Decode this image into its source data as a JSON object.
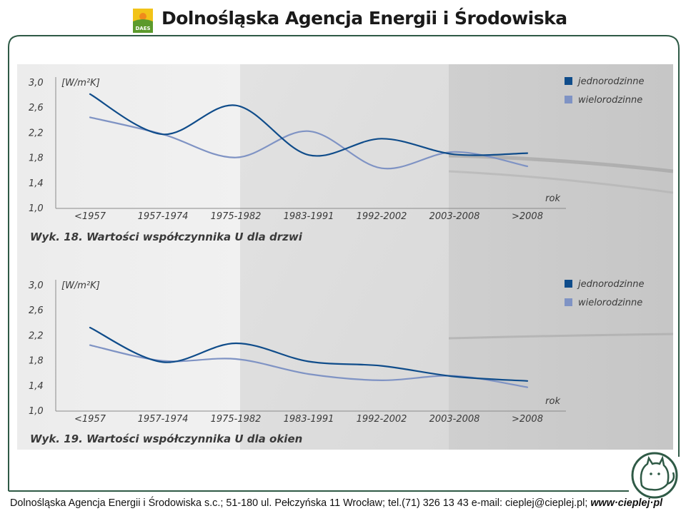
{
  "header": {
    "logo_text": "DAES",
    "title": "Dolnośląska Agencja Energii i Środowiska"
  },
  "colors": {
    "jednorodzinne": "#0f4c8a",
    "wielorodzinne": "#7f93c4",
    "frame": "#2f5a46"
  },
  "chart_data": [
    {
      "type": "line",
      "caption": "Wyk. 18. Wartości współczynnika U dla drzwi",
      "unit": "[W/m²K]",
      "xlabel": "rok",
      "ylim": [
        1.0,
        3.0
      ],
      "yticks": [
        "3,0",
        "2,6",
        "2,2",
        "1,8",
        "1,4",
        "1,0"
      ],
      "categories": [
        "<1957",
        "1957-1974",
        "1975-1982",
        "1983-1991",
        "1992-2002",
        "2003-2008",
        ">2008"
      ],
      "legend_position": "top-right",
      "series": [
        {
          "name": "jednorodzinne",
          "values": [
            2.82,
            2.18,
            2.64,
            1.85,
            2.11,
            1.86,
            1.88
          ]
        },
        {
          "name": "wielorodzinne",
          "values": [
            2.45,
            2.18,
            1.81,
            2.23,
            1.64,
            1.9,
            1.67
          ]
        }
      ]
    },
    {
      "type": "line",
      "caption": "Wyk. 19. Wartości współczynnika U dla okien",
      "unit": "[W/m²K]",
      "xlabel": "rok",
      "ylim": [
        1.0,
        3.0
      ],
      "yticks": [
        "3,0",
        "2,6",
        "2,2",
        "1,8",
        "1,4",
        "1,0"
      ],
      "categories": [
        "<1957",
        "1957-1974",
        "1975-1982",
        "1983-1991",
        "1992-2002",
        "2003-2008",
        ">2008"
      ],
      "legend_position": "top-right",
      "series": [
        {
          "name": "jednorodzinne",
          "values": [
            2.33,
            1.78,
            2.08,
            1.79,
            1.72,
            1.55,
            1.48
          ]
        },
        {
          "name": "wielorodzinne",
          "values": [
            2.05,
            1.8,
            1.83,
            1.59,
            1.49,
            1.56,
            1.38
          ]
        }
      ]
    }
  ],
  "footer": {
    "text": "Dolnośląska Agencja Energii i Środowiska s.c.; 51-180 ul. Pełczyńska 11 Wrocław; tel.(71) 326 13 43 e-mail: cieplej@cieplej.pl;",
    "web": "www·cieplej·pl"
  }
}
